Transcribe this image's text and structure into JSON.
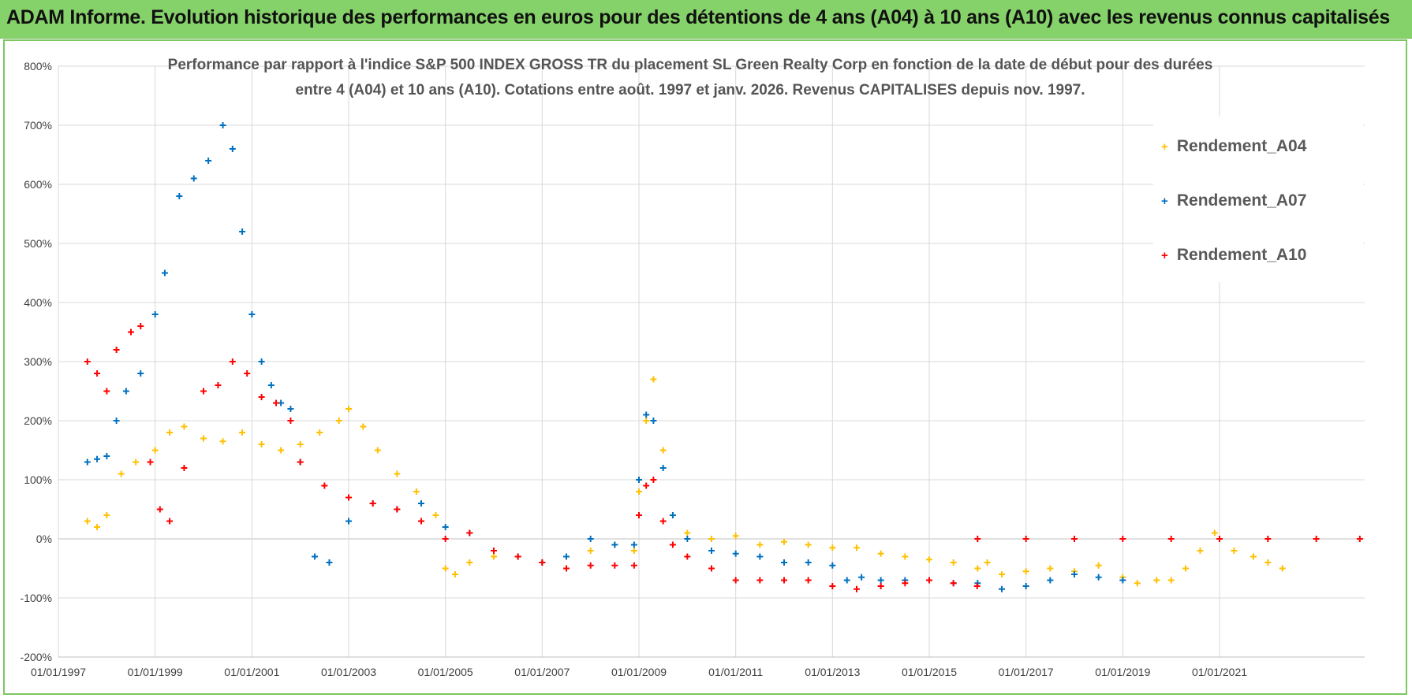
{
  "header": {
    "title": "ADAM Informe. Evolution historique des performances en euros pour des détentions de 4 ans (A04) à 10 ans (A10) avec les revenus connus capitalisés"
  },
  "colors": {
    "banner": "#86d26a",
    "series_A04": "#FFC000",
    "series_A07": "#0070C0",
    "series_A10": "#FF0000",
    "grid": "#d9d9d9"
  },
  "chart_data": {
    "type": "scatter",
    "title_line1": "Performance par rapport à l'indice S&P 500 INDEX GROSS TR  du placement SL Green Realty Corp en fonction de la date de début pour des durées",
    "title_line2": "entre 4 (A04) et 10 ans (A10).  Cotations entre août. 1997 et janv. 2026. Revenus CAPITALISES depuis nov. 1997.",
    "xlabel": "",
    "ylabel": "",
    "xlim": [
      1997.0,
      2024.0
    ],
    "ylim": [
      -200,
      800
    ],
    "y_ticks": [
      -200,
      -100,
      0,
      100,
      200,
      300,
      400,
      500,
      600,
      700,
      800
    ],
    "y_tick_labels": [
      "-200%",
      "-100%",
      "0%",
      "100%",
      "200%",
      "300%",
      "400%",
      "500%",
      "600%",
      "700%",
      "800%"
    ],
    "x_ticks": [
      1997,
      1999,
      2001,
      2003,
      2005,
      2007,
      2009,
      2011,
      2013,
      2015,
      2017,
      2019,
      2021
    ],
    "x_tick_labels": [
      "01/01/1997",
      "01/01/1999",
      "01/01/2001",
      "01/01/2003",
      "01/01/2005",
      "01/01/2007",
      "01/01/2009",
      "01/01/2011",
      "01/01/2013",
      "01/01/2015",
      "01/01/2017",
      "01/01/2019",
      "01/01/2021"
    ],
    "legend_position": "top-right",
    "series": [
      {
        "name": "Rendement_A04",
        "x": [
          1997.6,
          1997.8,
          1998.0,
          1998.3,
          1998.6,
          1999.0,
          1999.3,
          1999.6,
          2000.0,
          2000.4,
          2000.8,
          2001.2,
          2001.6,
          2002.0,
          2002.4,
          2002.8,
          2003.0,
          2003.3,
          2003.6,
          2004.0,
          2004.4,
          2004.8,
          2005.0,
          2005.2,
          2005.5,
          2006.0,
          2006.5,
          2007.0,
          2007.5,
          2008.0,
          2008.5,
          2008.9,
          2009.0,
          2009.15,
          2009.3,
          2009.5,
          2009.7,
          2010.0,
          2010.5,
          2011.0,
          2011.5,
          2012.0,
          2012.5,
          2013.0,
          2013.5,
          2014.0,
          2014.5,
          2015.0,
          2015.5,
          2016.0,
          2016.2,
          2016.5,
          2017.0,
          2017.5,
          2018.0,
          2018.5,
          2019.0,
          2019.3,
          2019.7,
          2020.0,
          2020.3,
          2020.6,
          2020.9,
          2021.3,
          2021.7,
          2022.0,
          2022.3
        ],
        "y": [
          30,
          20,
          40,
          110,
          130,
          150,
          180,
          190,
          170,
          165,
          180,
          160,
          150,
          160,
          180,
          200,
          220,
          190,
          150,
          110,
          80,
          40,
          -50,
          -60,
          -40,
          -30,
          -30,
          -40,
          -30,
          -20,
          -10,
          -20,
          80,
          200,
          270,
          150,
          40,
          10,
          0,
          5,
          -10,
          -5,
          -10,
          -15,
          -15,
          -25,
          -30,
          -35,
          -40,
          -50,
          -40,
          -60,
          -55,
          -50,
          -55,
          -45,
          -65,
          -75,
          -70,
          -70,
          -50,
          -20,
          10,
          -20,
          -30,
          -40,
          -50
        ]
      },
      {
        "name": "Rendement_A07",
        "x": [
          1997.6,
          1997.8,
          1998.0,
          1998.2,
          1998.4,
          1998.7,
          1999.0,
          1999.2,
          1999.5,
          1999.8,
          2000.1,
          2000.4,
          2000.6,
          2000.8,
          2001.0,
          2001.2,
          2001.4,
          2001.6,
          2001.8,
          2002.0,
          2002.3,
          2002.6,
          2003.0,
          2003.5,
          2004.0,
          2004.5,
          2005.0,
          2005.5,
          2006.0,
          2006.5,
          2007.0,
          2007.5,
          2008.0,
          2008.5,
          2008.9,
          2009.0,
          2009.15,
          2009.3,
          2009.5,
          2009.7,
          2010.0,
          2010.5,
          2011.0,
          2011.5,
          2012.0,
          2012.5,
          2013.0,
          2013.3,
          2013.6,
          2014.0,
          2014.5,
          2015.0,
          2015.5,
          2016.0,
          2016.5,
          2017.0,
          2017.5,
          2018.0,
          2018.5,
          2019.0
        ],
        "y": [
          130,
          135,
          140,
          200,
          250,
          280,
          380,
          450,
          580,
          610,
          640,
          700,
          660,
          520,
          380,
          300,
          260,
          230,
          220,
          130,
          -30,
          -40,
          30,
          60,
          50,
          60,
          20,
          10,
          -20,
          -30,
          -40,
          -30,
          0,
          -10,
          -10,
          100,
          210,
          200,
          120,
          40,
          0,
          -20,
          -25,
          -30,
          -40,
          -40,
          -45,
          -70,
          -65,
          -70,
          -70,
          -70,
          -75,
          -75,
          -85,
          -80,
          -70,
          -60,
          -65,
          -70
        ]
      },
      {
        "name": "Rendement_A10",
        "x": [
          1997.6,
          1997.8,
          1998.0,
          1998.2,
          1998.5,
          1998.7,
          1998.9,
          1999.1,
          1999.3,
          1999.6,
          2000.0,
          2000.3,
          2000.6,
          2000.9,
          2001.2,
          2001.5,
          2001.8,
          2002.0,
          2002.5,
          2003.0,
          2003.5,
          2004.0,
          2004.5,
          2005.0,
          2005.5,
          2006.0,
          2006.5,
          2007.0,
          2007.5,
          2008.0,
          2008.5,
          2008.9,
          2009.0,
          2009.15,
          2009.3,
          2009.5,
          2009.7,
          2010.0,
          2010.5,
          2011.0,
          2011.5,
          2012.0,
          2012.5,
          2013.0,
          2013.5,
          2014.0,
          2014.5,
          2015.0,
          2015.5,
          2015.99,
          2016.0,
          2017.0,
          2018.0,
          2019.0,
          2020.0,
          2021.0,
          2022.0,
          2023.0,
          2023.9
        ],
        "y": [
          300,
          280,
          250,
          320,
          350,
          360,
          130,
          50,
          30,
          120,
          250,
          260,
          300,
          280,
          240,
          230,
          200,
          130,
          90,
          70,
          60,
          50,
          30,
          0,
          10,
          -20,
          -30,
          -40,
          -50,
          -45,
          -45,
          -45,
          40,
          90,
          100,
          30,
          -10,
          -30,
          -50,
          -70,
          -70,
          -70,
          -70,
          -80,
          -85,
          -80,
          -75,
          -70,
          -75,
          -80,
          0,
          0,
          0,
          0,
          0,
          0,
          0,
          0,
          0
        ]
      }
    ]
  }
}
